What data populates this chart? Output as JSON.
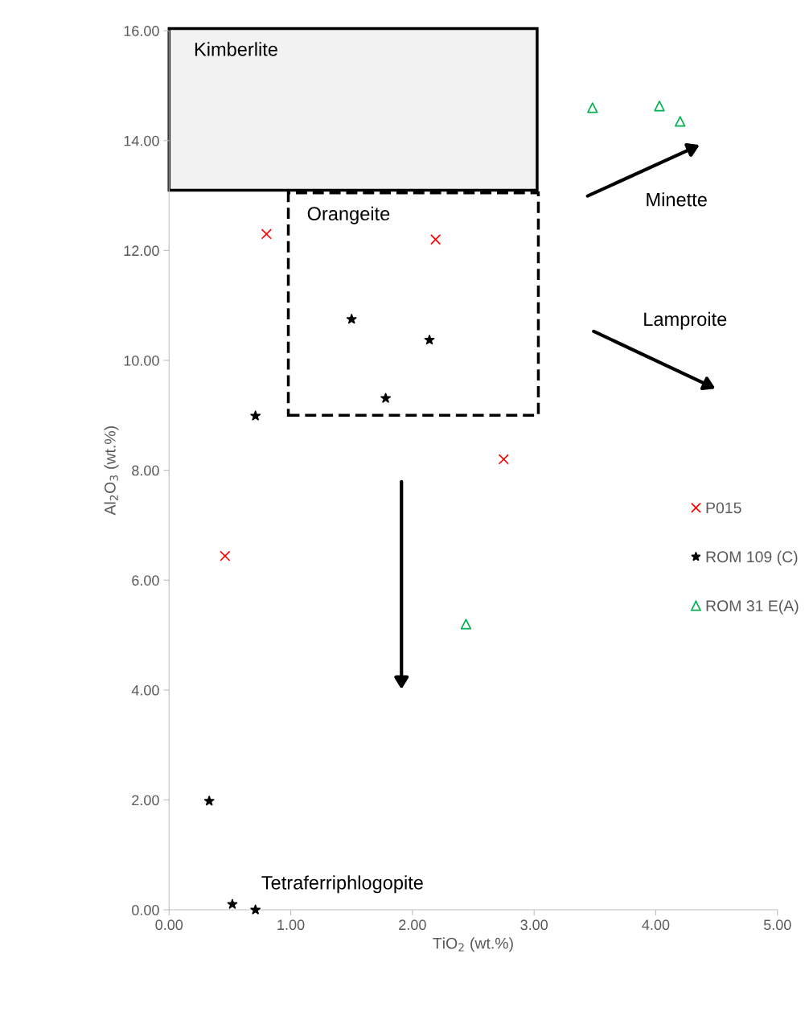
{
  "chart_data": {
    "type": "scatter",
    "xlabel": "TiO$_{2}$ (wt.%)",
    "ylabel": "Al$_{2}$O$_{3}$ (wt.%)",
    "xlim": [
      0,
      5
    ],
    "ylim": [
      0,
      16
    ],
    "xticks": [
      {
        "value": 0,
        "label": "0.00"
      },
      {
        "value": 1,
        "label": "1.00"
      },
      {
        "value": 2,
        "label": "2.00"
      },
      {
        "value": 3,
        "label": "3.00"
      },
      {
        "value": 4,
        "label": "4.00"
      },
      {
        "value": 5,
        "label": "5.00"
      }
    ],
    "yticks": [
      {
        "value": 0,
        "label": "0.00"
      },
      {
        "value": 2,
        "label": "2.00"
      },
      {
        "value": 4,
        "label": "4.00"
      },
      {
        "value": 6,
        "label": "6.00"
      },
      {
        "value": 8,
        "label": "8.00"
      },
      {
        "value": 10,
        "label": "10.00"
      },
      {
        "value": 12,
        "label": "12.00"
      },
      {
        "value": 14,
        "label": "14.00"
      },
      {
        "value": 16,
        "label": "16.00"
      }
    ],
    "grid": false,
    "legend": "right",
    "series": [
      {
        "name": "P015",
        "marker": "cross",
        "color": "#ff0000",
        "x": [
          0.8,
          2.19,
          2.75,
          0.46
        ],
        "values": [
          12.3,
          12.2,
          8.2,
          6.44
        ]
      },
      {
        "name": "ROM 109 (C)",
        "marker": "star",
        "color": "#000000",
        "x": [
          1.5,
          2.14,
          1.78,
          0.71,
          0.33,
          0.52,
          0.71
        ],
        "values": [
          10.75,
          10.37,
          9.31,
          8.99,
          1.98,
          0.1,
          0.0
        ]
      },
      {
        "name": "ROM 31 E(A)",
        "marker": "triangle",
        "color": "#00b050",
        "x": [
          3.48,
          4.03,
          4.2,
          2.44
        ],
        "values": [
          14.6,
          14.63,
          14.35,
          5.2
        ]
      }
    ],
    "annotations": [
      "Kimberlite",
      "Orangeite",
      "Minette",
      "Lamproite",
      "Tetraferriphlogopite"
    ]
  }
}
